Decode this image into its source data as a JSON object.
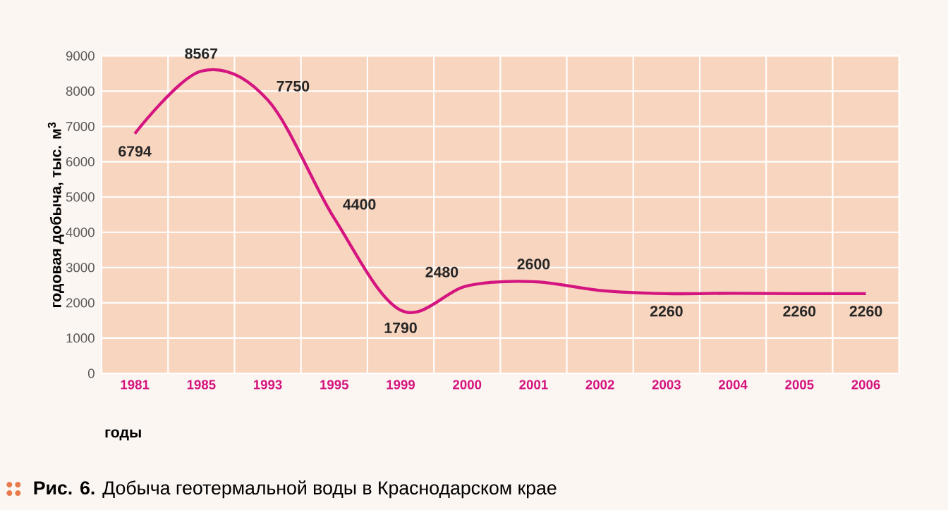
{
  "chart_data": {
    "type": "line",
    "title": "**Рис. 6.** Добыча геотермальной воды в Краснодарском крае",
    "xlabel": "годы",
    "ylabel": "годовая добыча, тыс. м$^{3}$",
    "categories": [
      "1981",
      "1985",
      "1993",
      "1995",
      "1999",
      "2000",
      "2001",
      "2002",
      "2003",
      "2004",
      "2005",
      "2006"
    ],
    "values": [
      6794,
      8567,
      7750,
      4400,
      1790,
      2480,
      2600,
      2350,
      2260,
      2270,
      2260,
      2260
    ],
    "value_labels": [
      "6794",
      "8567",
      "7750",
      "4400",
      "1790",
      "2480",
      "2600",
      null,
      "2260",
      null,
      "2260",
      "2260"
    ],
    "color": "#d4157f",
    "ylim": [
      0,
      9000
    ],
    "yticks": [
      0,
      1000,
      2000,
      3000,
      4000,
      5000,
      6000,
      7000,
      8000,
      9000
    ],
    "grid": true,
    "marker": "none",
    "line_style": "solid"
  }
}
